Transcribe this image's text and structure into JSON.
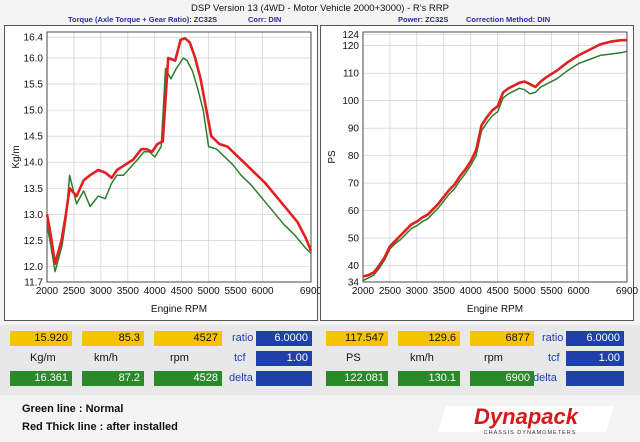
{
  "header": {
    "title": "DSP Version 13 (4WD - Motor Vehicle 2000+3000) - R's  RRP",
    "left_subtitle": "Torque (Axle Torque + Gear Ratio): ZC32S",
    "left_corr": "Corr: DIN",
    "right_power": "Power: ZC32S",
    "right_corr": "Correction Method: DIN"
  },
  "colors": {
    "normal": "#2e7d2e",
    "after": "#e32020",
    "grid": "#c8c8c8"
  },
  "chart_data": [
    {
      "type": "line",
      "title": "Torque",
      "xlabel": "Engine RPM",
      "ylabel": "Kg/m",
      "xlim": [
        2000,
        6900
      ],
      "ylim": [
        11.7,
        16.5
      ],
      "x_ticks": [
        "2000",
        "2500",
        "3000",
        "3500",
        "4000",
        "4500",
        "5000",
        "5500",
        "6000",
        "6900"
      ],
      "y_ticks": [
        "11.7",
        "12.0",
        "12.5",
        "13.0",
        "13.5",
        "14.0",
        "14.5",
        "15.0",
        "15.5",
        "16.0",
        "16.4"
      ],
      "series": [
        {
          "name": "Green line : Normal",
          "points": [
            [
              2000,
              12.8
            ],
            [
              2070,
              12.4
            ],
            [
              2150,
              11.9
            ],
            [
              2280,
              12.4
            ],
            [
              2350,
              12.9
            ],
            [
              2420,
              13.75
            ],
            [
              2550,
              13.2
            ],
            [
              2680,
              13.45
            ],
            [
              2800,
              13.15
            ],
            [
              2950,
              13.35
            ],
            [
              3080,
              13.3
            ],
            [
              3200,
              13.6
            ],
            [
              3300,
              13.75
            ],
            [
              3420,
              13.75
            ],
            [
              3550,
              13.9
            ],
            [
              3680,
              14.05
            ],
            [
              3800,
              14.2
            ],
            [
              3900,
              14.2
            ],
            [
              4000,
              14.1
            ],
            [
              4120,
              14.3
            ],
            [
              4200,
              15.8
            ],
            [
              4300,
              15.6
            ],
            [
              4400,
              15.8
            ],
            [
              4530,
              16.0
            ],
            [
              4600,
              15.95
            ],
            [
              4700,
              15.75
            ],
            [
              4800,
              15.4
            ],
            [
              4900,
              15.0
            ],
            [
              5000,
              14.3
            ],
            [
              5150,
              14.25
            ],
            [
              5300,
              14.1
            ],
            [
              5450,
              13.95
            ],
            [
              5600,
              13.75
            ],
            [
              5800,
              13.55
            ],
            [
              6000,
              13.3
            ],
            [
              6200,
              13.05
            ],
            [
              6400,
              12.8
            ],
            [
              6600,
              12.6
            ],
            [
              6800,
              12.35
            ],
            [
              6900,
              12.25
            ]
          ]
        },
        {
          "name": "Red Thick line : after installed",
          "points": [
            [
              2000,
              13.0
            ],
            [
              2070,
              12.6
            ],
            [
              2150,
              12.05
            ],
            [
              2270,
              12.5
            ],
            [
              2350,
              13.0
            ],
            [
              2420,
              13.5
            ],
            [
              2550,
              13.35
            ],
            [
              2680,
              13.65
            ],
            [
              2800,
              13.75
            ],
            [
              2950,
              13.85
            ],
            [
              3080,
              13.8
            ],
            [
              3200,
              13.7
            ],
            [
              3300,
              13.85
            ],
            [
              3450,
              13.95
            ],
            [
              3600,
              14.05
            ],
            [
              3750,
              14.25
            ],
            [
              3850,
              14.25
            ],
            [
              3950,
              14.2
            ],
            [
              4050,
              14.35
            ],
            [
              4150,
              14.4
            ],
            [
              4250,
              16.0
            ],
            [
              4380,
              15.95
            ],
            [
              4480,
              16.35
            ],
            [
              4560,
              16.38
            ],
            [
              4650,
              16.3
            ],
            [
              4750,
              16.0
            ],
            [
              4850,
              15.6
            ],
            [
              4950,
              15.05
            ],
            [
              5050,
              14.5
            ],
            [
              5200,
              14.35
            ],
            [
              5350,
              14.3
            ],
            [
              5500,
              14.15
            ],
            [
              5650,
              14.0
            ],
            [
              5850,
              13.8
            ],
            [
              6050,
              13.6
            ],
            [
              6250,
              13.35
            ],
            [
              6450,
              13.1
            ],
            [
              6650,
              12.85
            ],
            [
              6800,
              12.55
            ],
            [
              6900,
              12.3
            ]
          ]
        }
      ]
    },
    {
      "type": "line",
      "title": "Power",
      "xlabel": "Engine RPM",
      "ylabel": "PS",
      "xlim": [
        2000,
        6900
      ],
      "ylim": [
        34,
        125
      ],
      "x_ticks": [
        "2000",
        "2500",
        "3000",
        "3500",
        "4000",
        "4500",
        "5000",
        "5500",
        "6000",
        "6900"
      ],
      "y_ticks": [
        "34",
        "40",
        "50",
        "60",
        "70",
        "80",
        "90",
        "100",
        "110",
        "120",
        "124"
      ],
      "series": [
        {
          "name": "Green line : Normal",
          "points": [
            [
              2000,
              34.5
            ],
            [
              2100,
              35.5
            ],
            [
              2200,
              36.5
            ],
            [
              2300,
              39
            ],
            [
              2400,
              42
            ],
            [
              2500,
              46
            ],
            [
              2600,
              48
            ],
            [
              2700,
              49.5
            ],
            [
              2800,
              51.5
            ],
            [
              2900,
              53.5
            ],
            [
              3000,
              54.5
            ],
            [
              3100,
              56
            ],
            [
              3200,
              57
            ],
            [
              3300,
              59
            ],
            [
              3400,
              61
            ],
            [
              3500,
              63.5
            ],
            [
              3600,
              66
            ],
            [
              3700,
              68
            ],
            [
              3800,
              71
            ],
            [
              3900,
              73.5
            ],
            [
              4000,
              76.5
            ],
            [
              4100,
              80
            ],
            [
              4200,
              89
            ],
            [
              4300,
              92
            ],
            [
              4400,
              94.5
            ],
            [
              4500,
              96
            ],
            [
              4600,
              101
            ],
            [
              4700,
              102.5
            ],
            [
              4800,
              103.5
            ],
            [
              4900,
              104.5
            ],
            [
              5000,
              104
            ],
            [
              5100,
              102.5
            ],
            [
              5200,
              103
            ],
            [
              5300,
              105
            ],
            [
              5400,
              106
            ],
            [
              5600,
              108
            ],
            [
              5800,
              111
            ],
            [
              6000,
              113.5
            ],
            [
              6200,
              115
            ],
            [
              6400,
              116.5
            ],
            [
              6600,
              117
            ],
            [
              6800,
              117.5
            ],
            [
              6900,
              118
            ]
          ]
        },
        {
          "name": "Red Thick line : after installed",
          "points": [
            [
              2000,
              36
            ],
            [
              2100,
              36.5
            ],
            [
              2200,
              37.5
            ],
            [
              2300,
              40
            ],
            [
              2400,
              43
            ],
            [
              2500,
              47
            ],
            [
              2600,
              49
            ],
            [
              2700,
              51
            ],
            [
              2800,
              53
            ],
            [
              2900,
              55
            ],
            [
              3000,
              56
            ],
            [
              3100,
              57.5
            ],
            [
              3200,
              58.5
            ],
            [
              3300,
              60.5
            ],
            [
              3400,
              62.5
            ],
            [
              3500,
              65
            ],
            [
              3600,
              67.5
            ],
            [
              3700,
              69.5
            ],
            [
              3800,
              72.5
            ],
            [
              3900,
              75
            ],
            [
              4000,
              78
            ],
            [
              4100,
              82
            ],
            [
              4200,
              91
            ],
            [
              4300,
              94
            ],
            [
              4400,
              96.5
            ],
            [
              4500,
              98
            ],
            [
              4600,
              103
            ],
            [
              4700,
              104.5
            ],
            [
              4800,
              105.5
            ],
            [
              4900,
              106.5
            ],
            [
              5000,
              107
            ],
            [
              5100,
              106
            ],
            [
              5200,
              105
            ],
            [
              5300,
              107
            ],
            [
              5400,
              108.5
            ],
            [
              5600,
              111
            ],
            [
              5800,
              114
            ],
            [
              6000,
              116.5
            ],
            [
              6200,
              118.5
            ],
            [
              6400,
              120.5
            ],
            [
              6600,
              121.5
            ],
            [
              6800,
              122
            ],
            [
              6900,
              122
            ]
          ]
        }
      ]
    }
  ],
  "left_panel": {
    "row1": [
      "15.920",
      "85.3",
      "4527"
    ],
    "units": [
      "Kg/m",
      "km/h",
      "rpm"
    ],
    "row2": [
      "16.361",
      "87.2",
      "4528"
    ],
    "ratio_label": "ratio",
    "ratio_value": "6.0000",
    "tcf_label": "tcf",
    "tcf_value": "1.00",
    "delta_label": "delta"
  },
  "right_panel": {
    "row1": [
      "117.547",
      "129.6",
      "6877"
    ],
    "units": [
      "PS",
      "km/h",
      "rpm"
    ],
    "row2": [
      "122.081",
      "130.1",
      "6900"
    ],
    "ratio_label": "ratio",
    "ratio_value": "6.0000",
    "tcf_label": "tcf",
    "tcf_value": "1.00",
    "delta_label": "delta"
  },
  "legend": {
    "normal": "Green line : Normal",
    "after": "Red Thick line : after installed"
  },
  "logo": {
    "brand": "Dynapack",
    "tagline": "CHASSIS DYNAMOMETERS"
  }
}
